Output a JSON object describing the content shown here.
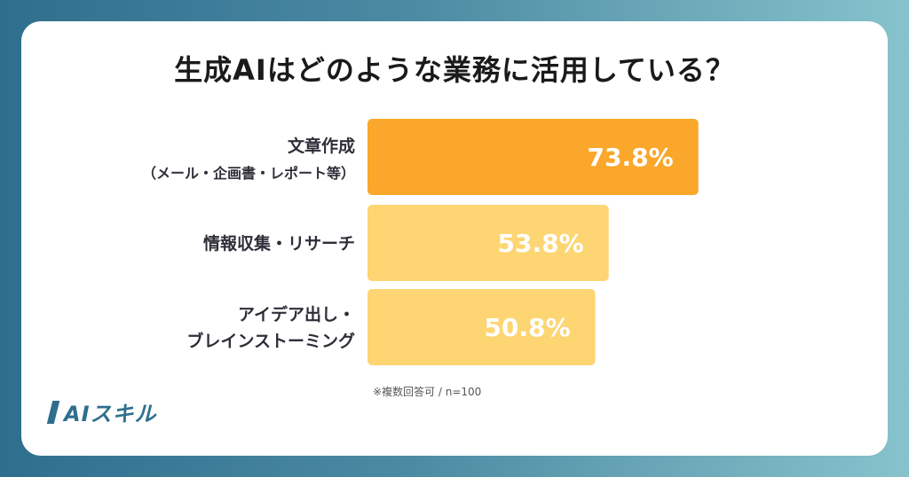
{
  "title": "生成AIはどのような業務に活用している？",
  "note": "※複数回答可 / n=100",
  "logo": {
    "mark_icon": "slash-mark-icon",
    "text": "AIスキル"
  },
  "colors": {
    "highlight_bar": "#FAA72B",
    "bar": "#FDD573",
    "accent": "#2F6F8E"
  },
  "chart_data": {
    "type": "bar",
    "orientation": "horizontal",
    "categories": [
      [
        "文章作成",
        "（メール・企画書・レポート等）"
      ],
      [
        "情報収集・リサーチ"
      ],
      [
        "アイデア出し・",
        "ブレインストーミング"
      ]
    ],
    "values": [
      73.8,
      53.8,
      50.8
    ],
    "value_labels": [
      "73.8%",
      "53.8%",
      "50.8%"
    ],
    "unit": "%",
    "xlim": [
      0,
      100
    ],
    "grid": false,
    "legend": "none",
    "highlighted_index": 0
  }
}
